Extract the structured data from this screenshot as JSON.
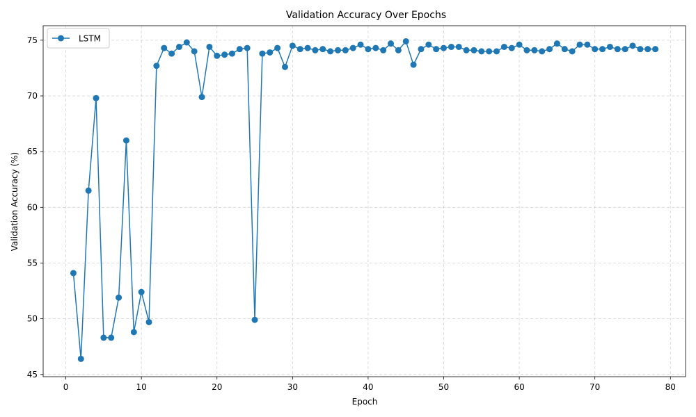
{
  "chart_data": {
    "type": "line",
    "title": "Validation Accuracy Over Epochs",
    "xlabel": "Epoch",
    "ylabel": "Validation Accuracy (%)",
    "xlim": [
      -3,
      82
    ],
    "ylim": [
      44.8,
      76.3
    ],
    "xticks": [
      0,
      10,
      20,
      30,
      40,
      50,
      60,
      70,
      80
    ],
    "yticks": [
      45,
      50,
      55,
      60,
      65,
      70,
      75
    ],
    "grid": true,
    "legend": "top-left",
    "series": [
      {
        "name": "LSTM",
        "color": "#1f77b4",
        "marker": "circle",
        "x": [
          1,
          2,
          3,
          4,
          5,
          6,
          7,
          8,
          9,
          10,
          11,
          12,
          13,
          14,
          15,
          16,
          17,
          18,
          19,
          20,
          21,
          22,
          23,
          24,
          25,
          26,
          27,
          28,
          29,
          30,
          31,
          32,
          33,
          34,
          35,
          36,
          37,
          38,
          39,
          40,
          41,
          42,
          43,
          44,
          45,
          46,
          47,
          48,
          49,
          50,
          51,
          52,
          53,
          54,
          55,
          56,
          57,
          58,
          59,
          60,
          61,
          62,
          63,
          64,
          65,
          66,
          67,
          68,
          69,
          70,
          71,
          72,
          73,
          74,
          75,
          76,
          77,
          78
        ],
        "values": [
          54.1,
          46.4,
          61.5,
          69.8,
          48.3,
          48.3,
          51.9,
          66.0,
          48.8,
          52.4,
          49.7,
          72.7,
          74.3,
          73.8,
          74.4,
          74.8,
          74.0,
          69.9,
          74.4,
          73.6,
          73.7,
          73.8,
          74.2,
          74.3,
          49.9,
          73.8,
          73.9,
          74.3,
          72.6,
          74.5,
          74.2,
          74.3,
          74.1,
          74.2,
          74.0,
          74.1,
          74.1,
          74.3,
          74.6,
          74.2,
          74.3,
          74.1,
          74.7,
          74.1,
          74.9,
          72.8,
          74.2,
          74.6,
          74.2,
          74.3,
          74.4,
          74.4,
          74.1,
          74.1,
          74.0,
          74.0,
          74.0,
          74.4,
          74.3,
          74.6,
          74.1,
          74.1,
          74.0,
          74.2,
          74.7,
          74.2,
          74.0,
          74.6,
          74.6,
          74.2,
          74.2,
          74.4,
          74.2,
          74.2,
          74.5,
          74.2,
          74.2,
          74.2
        ]
      }
    ]
  }
}
